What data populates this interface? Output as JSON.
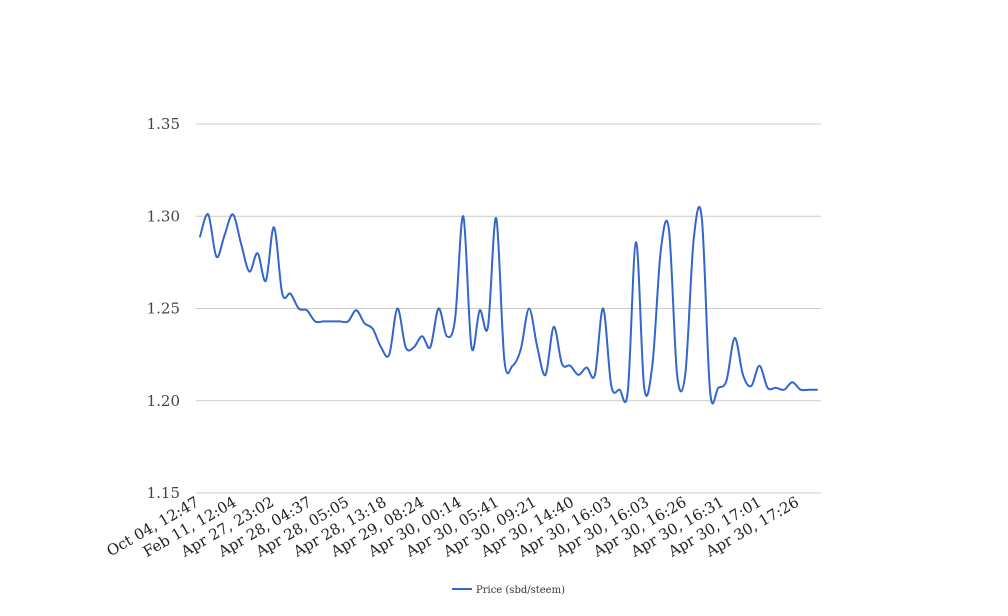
{
  "chart_data": {
    "type": "line",
    "title": "",
    "xlabel": "",
    "ylabel": "",
    "ylim": [
      1.15,
      1.35
    ],
    "yticks": [
      "1.35",
      "1.30",
      "1.25",
      "1.20",
      "1.15"
    ],
    "grid": true,
    "legend_position": "bottom",
    "x_tick_labels": [
      "Oct 04, 12:47",
      "Feb 11, 12:04",
      "Apr 27, 23:02",
      "Apr 28, 04:37",
      "Apr 28, 05:05",
      "Apr 28, 13:18",
      "Apr 29, 08:24",
      "Apr 30, 00:14",
      "Apr 30, 05:41",
      "Apr 30, 09:21",
      "Apr 30, 14:40",
      "Apr 30, 16:03",
      "Apr 30, 16:03",
      "Apr 30, 16:26",
      "Apr 30, 16:31",
      "Apr 30, 17:01",
      "Apr 30, 17:26"
    ],
    "series": [
      {
        "name": "Price (sbd/steem)",
        "color": "#3366cc",
        "values": [
          1.289,
          1.301,
          1.278,
          1.29,
          1.301,
          1.285,
          1.27,
          1.28,
          1.265,
          1.294,
          1.258,
          1.258,
          1.25,
          1.249,
          1.243,
          1.243,
          1.243,
          1.243,
          1.243,
          1.249,
          1.242,
          1.239,
          1.229,
          1.225,
          1.25,
          1.229,
          1.229,
          1.235,
          1.229,
          1.25,
          1.235,
          1.244,
          1.3,
          1.229,
          1.249,
          1.24,
          1.299,
          1.222,
          1.219,
          1.228,
          1.25,
          1.229,
          1.214,
          1.24,
          1.22,
          1.219,
          1.214,
          1.218,
          1.214,
          1.25,
          1.208,
          1.206,
          1.205,
          1.286,
          1.207,
          1.22,
          1.281,
          1.293,
          1.214,
          1.215,
          1.287,
          1.299,
          1.205,
          1.207,
          1.211,
          1.234,
          1.214,
          1.208,
          1.219,
          1.207,
          1.207,
          1.206,
          1.21,
          1.206,
          1.206,
          1.206
        ]
      }
    ]
  }
}
